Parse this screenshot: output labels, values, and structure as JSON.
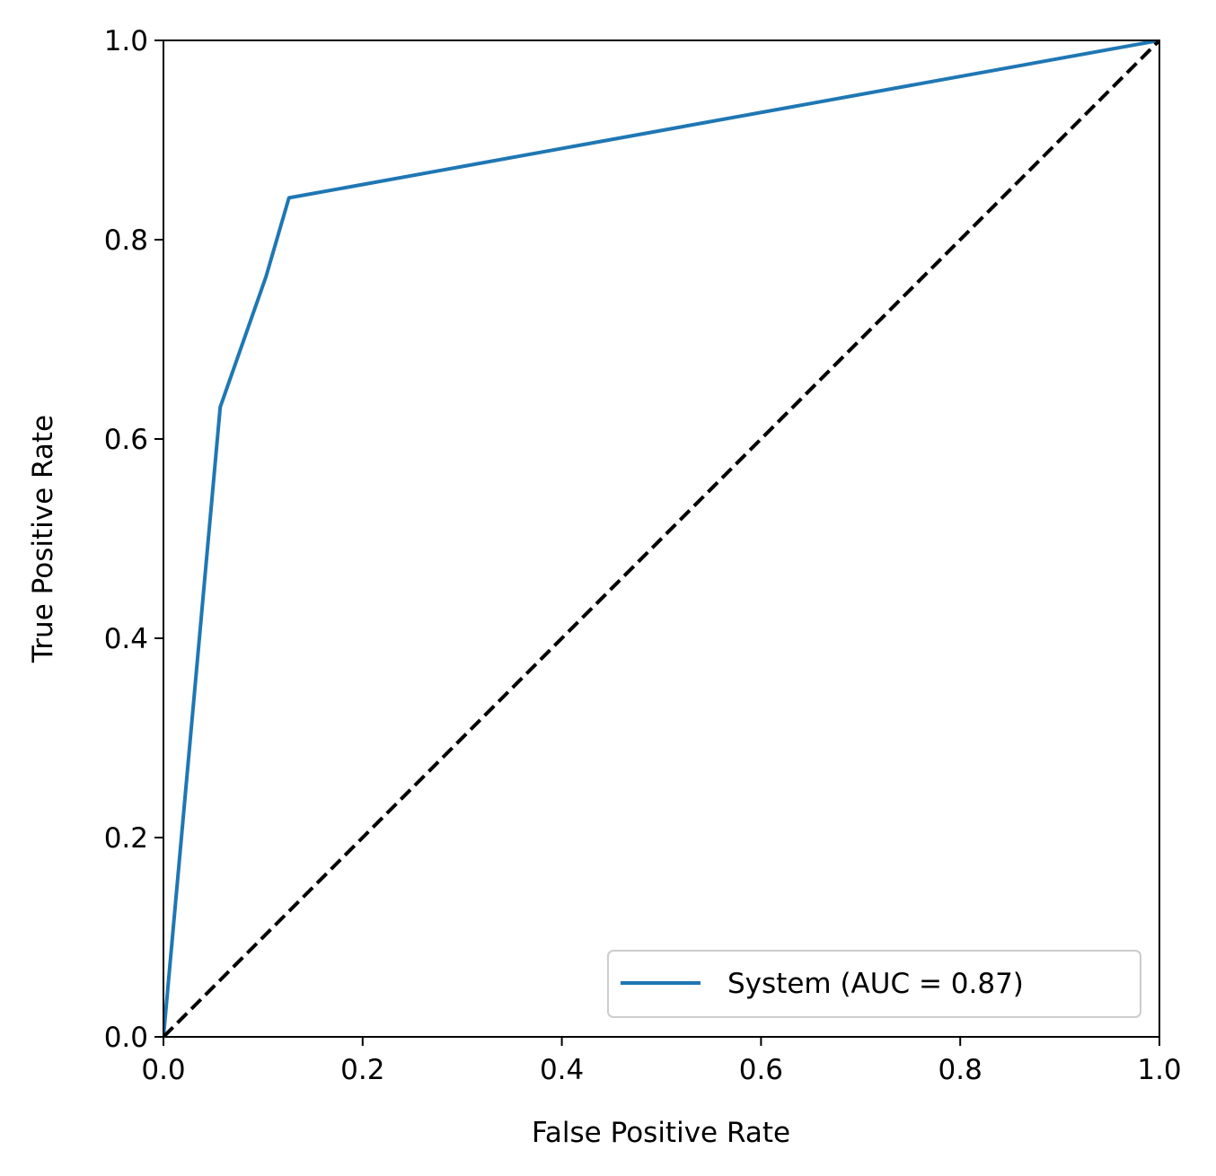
{
  "chart_data": {
    "type": "line",
    "title": "",
    "xlabel": "False Positive Rate",
    "ylabel": "True Positive Rate",
    "xlim": [
      0.0,
      1.0
    ],
    "ylim": [
      0.0,
      1.0
    ],
    "xticks": [
      "0.0",
      "0.2",
      "0.4",
      "0.6",
      "0.8",
      "1.0"
    ],
    "yticks": [
      "0.0",
      "0.2",
      "0.4",
      "0.6",
      "0.8",
      "1.0"
    ],
    "grid": false,
    "legend_position": "lower-right",
    "series": [
      {
        "name": "System (AUC = 0.87)",
        "color": "#1f77b4",
        "style": "solid",
        "x": [
          0.0,
          0.057,
          0.103,
          0.126,
          1.0
        ],
        "y": [
          0.0,
          0.632,
          0.763,
          0.842,
          1.0
        ]
      },
      {
        "color": "#000000",
        "style": "dashed",
        "x": [
          0.0,
          1.0
        ],
        "y": [
          0.0,
          1.0
        ]
      }
    ]
  }
}
